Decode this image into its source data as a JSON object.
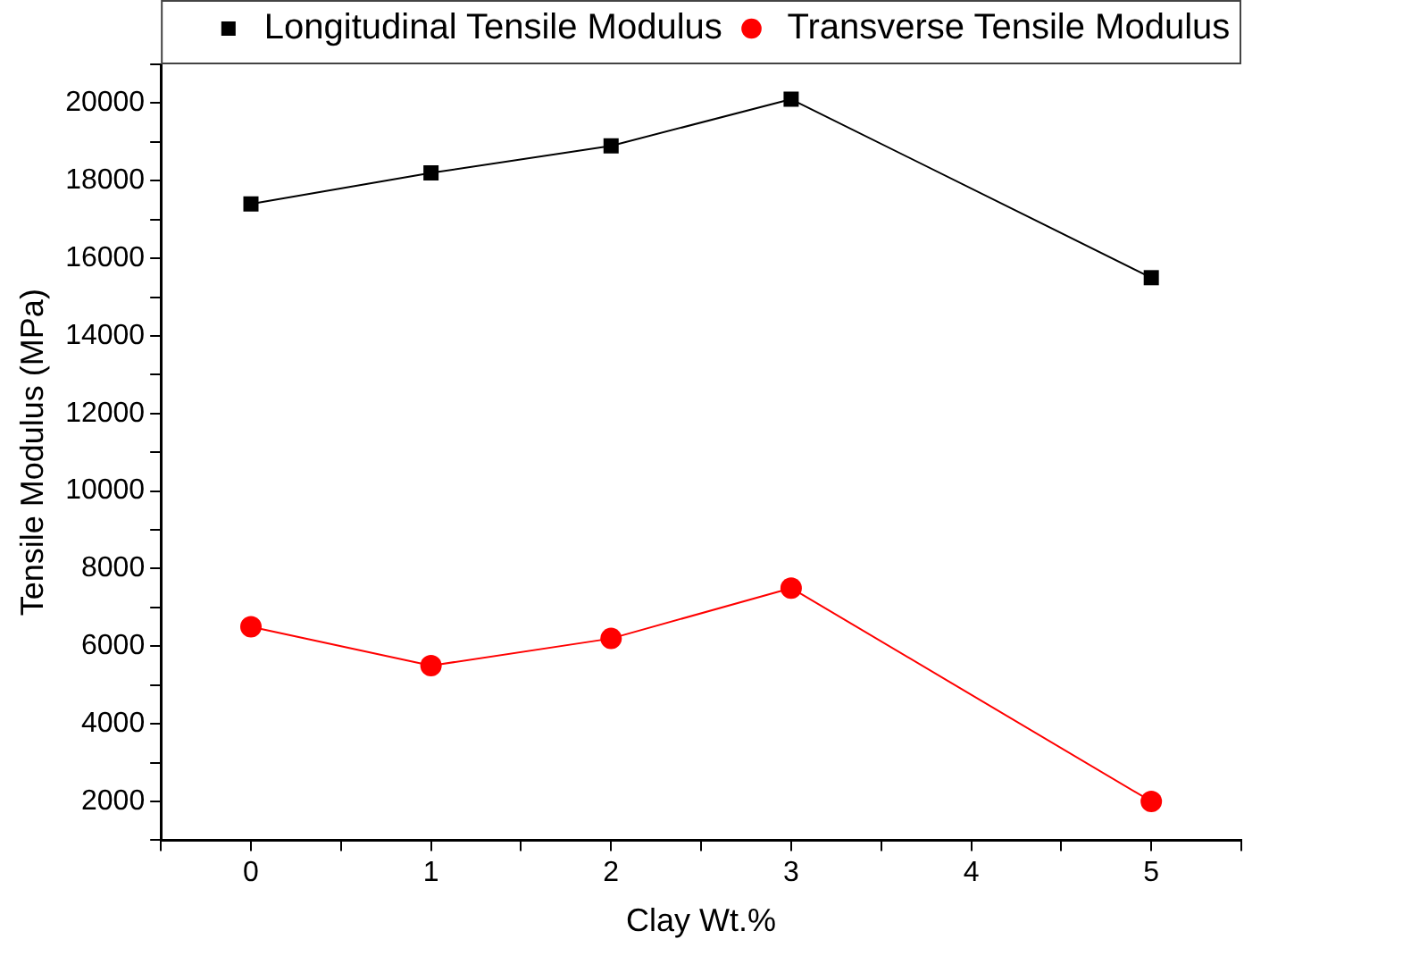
{
  "chart_data": {
    "type": "line",
    "xlabel": "Clay Wt.%",
    "ylabel": "Tensile Modulus (MPa)",
    "x": [
      0,
      1,
      2,
      3,
      5
    ],
    "xlim": [
      -0.5,
      5.5
    ],
    "xticks": [
      {
        "value": -0.5,
        "label": null
      },
      0,
      {
        "value": 0.5,
        "label": null
      },
      1,
      {
        "value": 1.5,
        "label": null
      },
      2,
      {
        "value": 2.5,
        "label": null
      },
      3,
      {
        "value": 3.5,
        "label": null
      },
      4,
      {
        "value": 4.5,
        "label": null
      },
      5,
      {
        "value": 5.5,
        "label": null
      }
    ],
    "ylim": [
      1000,
      21000
    ],
    "yticks": [
      {
        "value": 1000,
        "label": null
      },
      2000,
      {
        "value": 3000,
        "label": null
      },
      4000,
      {
        "value": 5000,
        "label": null
      },
      6000,
      {
        "value": 7000,
        "label": null
      },
      8000,
      {
        "value": 9000,
        "label": null
      },
      10000,
      {
        "value": 11000,
        "label": null
      },
      12000,
      {
        "value": 13000,
        "label": null
      },
      14000,
      {
        "value": 15000,
        "label": null
      },
      16000,
      {
        "value": 17000,
        "label": null
      },
      18000,
      {
        "value": 19000,
        "label": null
      },
      20000,
      {
        "value": 21000,
        "label": null
      }
    ],
    "grid": false,
    "legend": "top right",
    "line_style": "solid",
    "series": [
      {
        "name": "Longitudinal Tensile Modulus",
        "color": "#000000",
        "marker": "square",
        "values": [
          17400,
          18200,
          18900,
          20100,
          15500
        ]
      },
      {
        "name": "Transverse Tensile Modulus",
        "color": "#ff0000",
        "marker": "circle",
        "values": [
          6500,
          5500,
          6200,
          7500,
          2000
        ]
      }
    ]
  }
}
